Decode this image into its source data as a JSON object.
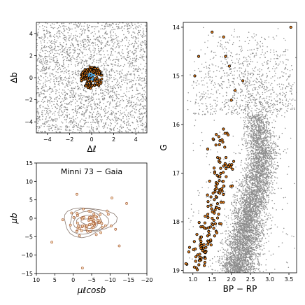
{
  "chart_data": [
    {
      "type": "scatter",
      "panel": "spatial",
      "xlabel": "Δℓ",
      "ylabel": "Δb",
      "xlim": [
        -5,
        5
      ],
      "ylim": [
        -5,
        5
      ],
      "xticks": [
        -4,
        -2,
        0,
        2,
        4
      ],
      "yticks": [
        -4,
        -2,
        0,
        2,
        4
      ],
      "field_star_count": 2600,
      "cluster_center": [
        0,
        0
      ],
      "cluster_radius": 1.0,
      "cluster_member_count": 160,
      "core_member_count": 14,
      "colors": {
        "field": "#8c8c8c",
        "member_edge": "#000000",
        "member_fill": "#e07b1a",
        "core": "#4aa3df"
      }
    },
    {
      "type": "scatter",
      "panel": "proper-motion",
      "title": "Minni 73  −  Gaia",
      "xlabel": "μℓcosb",
      "ylabel": "μb",
      "xlim": [
        10,
        -20
      ],
      "ylim": [
        -15,
        15
      ],
      "xticks": [
        10,
        5,
        0,
        -5,
        -10,
        -15,
        -20
      ],
      "yticks": [
        -15,
        -10,
        -5,
        0,
        5,
        10,
        15
      ],
      "density_center": [
        -4,
        -1
      ],
      "contour_levels": 5,
      "member_count": 70,
      "outliers": [
        [
          5.8,
          -6.5
        ],
        [
          -2.5,
          -13.5
        ],
        [
          -10.5,
          5.5
        ],
        [
          -14.5,
          4.0
        ],
        [
          -12.5,
          -7.5
        ],
        [
          -1.0,
          6.5
        ],
        [
          -11.5,
          -3.0
        ]
      ],
      "colors": {
        "point_edge": "#a0522d",
        "point_fill": "#f4d9b5",
        "contour": "#8b7b72"
      }
    },
    {
      "type": "scatter",
      "panel": "color-magnitude",
      "xlabel": "BP − RP",
      "ylabel": "G",
      "xlim": [
        0.75,
        3.7
      ],
      "ylim": [
        19.05,
        13.9
      ],
      "xticks": [
        1.0,
        1.5,
        2.0,
        2.5,
        3.0,
        3.5
      ],
      "yticks": [
        14,
        15,
        16,
        17,
        18,
        19
      ],
      "field_star_count": 6000,
      "member_count": 160,
      "member_sequence": [
        [
          1.68,
          16.0
        ],
        [
          1.85,
          16.8
        ],
        [
          1.6,
          17.6
        ],
        [
          1.35,
          18.4
        ],
        [
          1.05,
          19.0
        ]
      ],
      "bright_members": [
        [
          1.15,
          14.6
        ],
        [
          1.85,
          14.6
        ],
        [
          1.95,
          14.8
        ],
        [
          1.05,
          15.0
        ],
        [
          2.3,
          15.1
        ],
        [
          1.8,
          14.2
        ],
        [
          2.1,
          15.3
        ],
        [
          2.0,
          15.5
        ],
        [
          3.55,
          14.0
        ],
        [
          1.5,
          14.1
        ]
      ],
      "colors": {
        "field": "#8c8c8c",
        "member_edge": "#000000",
        "member_fill": "#e07b1a"
      }
    }
  ]
}
